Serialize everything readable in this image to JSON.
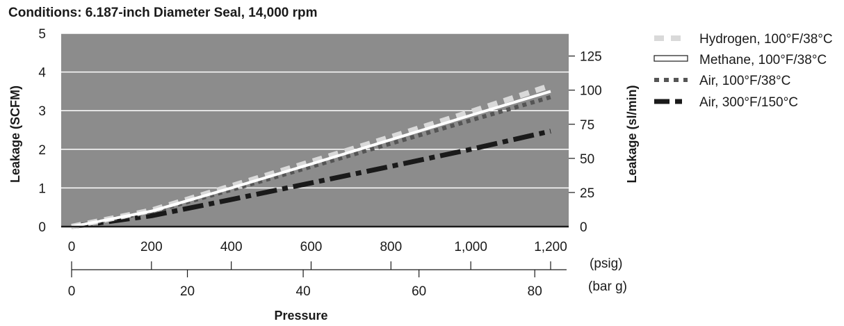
{
  "chart_data": {
    "type": "line",
    "title": "Conditions: 6.187-inch Diameter Seal, 14,000 rpm",
    "xlabel": "Pressure",
    "ylabel": "Leakage (SCFM)",
    "y2label": "Leakage (sl/min)",
    "xunit_primary": "(psig)",
    "xunit_secondary": "(bar g)",
    "xlim": [
      0,
      1200
    ],
    "ylim": [
      0,
      5
    ],
    "y2lim": [
      0,
      141.6
    ],
    "x_ticks": [
      "0",
      "200",
      "400",
      "600",
      "800",
      "1,000",
      "1,200"
    ],
    "x_tick_values": [
      0,
      200,
      400,
      600,
      800,
      1000,
      1200
    ],
    "x2_ticks": [
      "0",
      "20",
      "40",
      "60",
      "80"
    ],
    "x2_tick_values": [
      0,
      20,
      40,
      60,
      80
    ],
    "y_ticks": [
      "0",
      "1",
      "2",
      "3",
      "4",
      "5"
    ],
    "y_tick_values": [
      0,
      1,
      2,
      3,
      4,
      5
    ],
    "y2_ticks": [
      "0",
      "25",
      "50",
      "75",
      "100",
      "125"
    ],
    "y2_tick_values": [
      0,
      25,
      50,
      75,
      100,
      125
    ],
    "grid": true,
    "legend": "right",
    "background": "#8c8c8c",
    "series": [
      {
        "name": "Hydrogen, 100°F/38°C",
        "color": "#d9d9d9",
        "style": "dashed",
        "x": [
          0,
          200,
          400,
          600,
          800,
          1000,
          1200
        ],
        "y": [
          0,
          0.42,
          1.05,
          1.68,
          2.32,
          2.97,
          3.65
        ]
      },
      {
        "name": "Methane, 100°F/38°C",
        "color": "#ffffff",
        "style": "solid-outline",
        "x": [
          0,
          200,
          400,
          600,
          800,
          1000,
          1200
        ],
        "y": [
          0,
          0.4,
          1.0,
          1.62,
          2.25,
          2.88,
          3.5
        ]
      },
      {
        "name": "Air, 100°F/38°C",
        "color": "#555555",
        "style": "dotted",
        "x": [
          0,
          200,
          400,
          600,
          800,
          1000,
          1200
        ],
        "y": [
          0,
          0.38,
          0.95,
          1.55,
          2.15,
          2.75,
          3.35
        ]
      },
      {
        "name": "Air, 300°F/150°C",
        "color": "#1a1a1a",
        "style": "dashdot",
        "x": [
          0,
          200,
          400,
          600,
          800,
          1000,
          1200
        ],
        "y": [
          0,
          0.28,
          0.7,
          1.13,
          1.56,
          2.0,
          2.47
        ]
      }
    ]
  }
}
